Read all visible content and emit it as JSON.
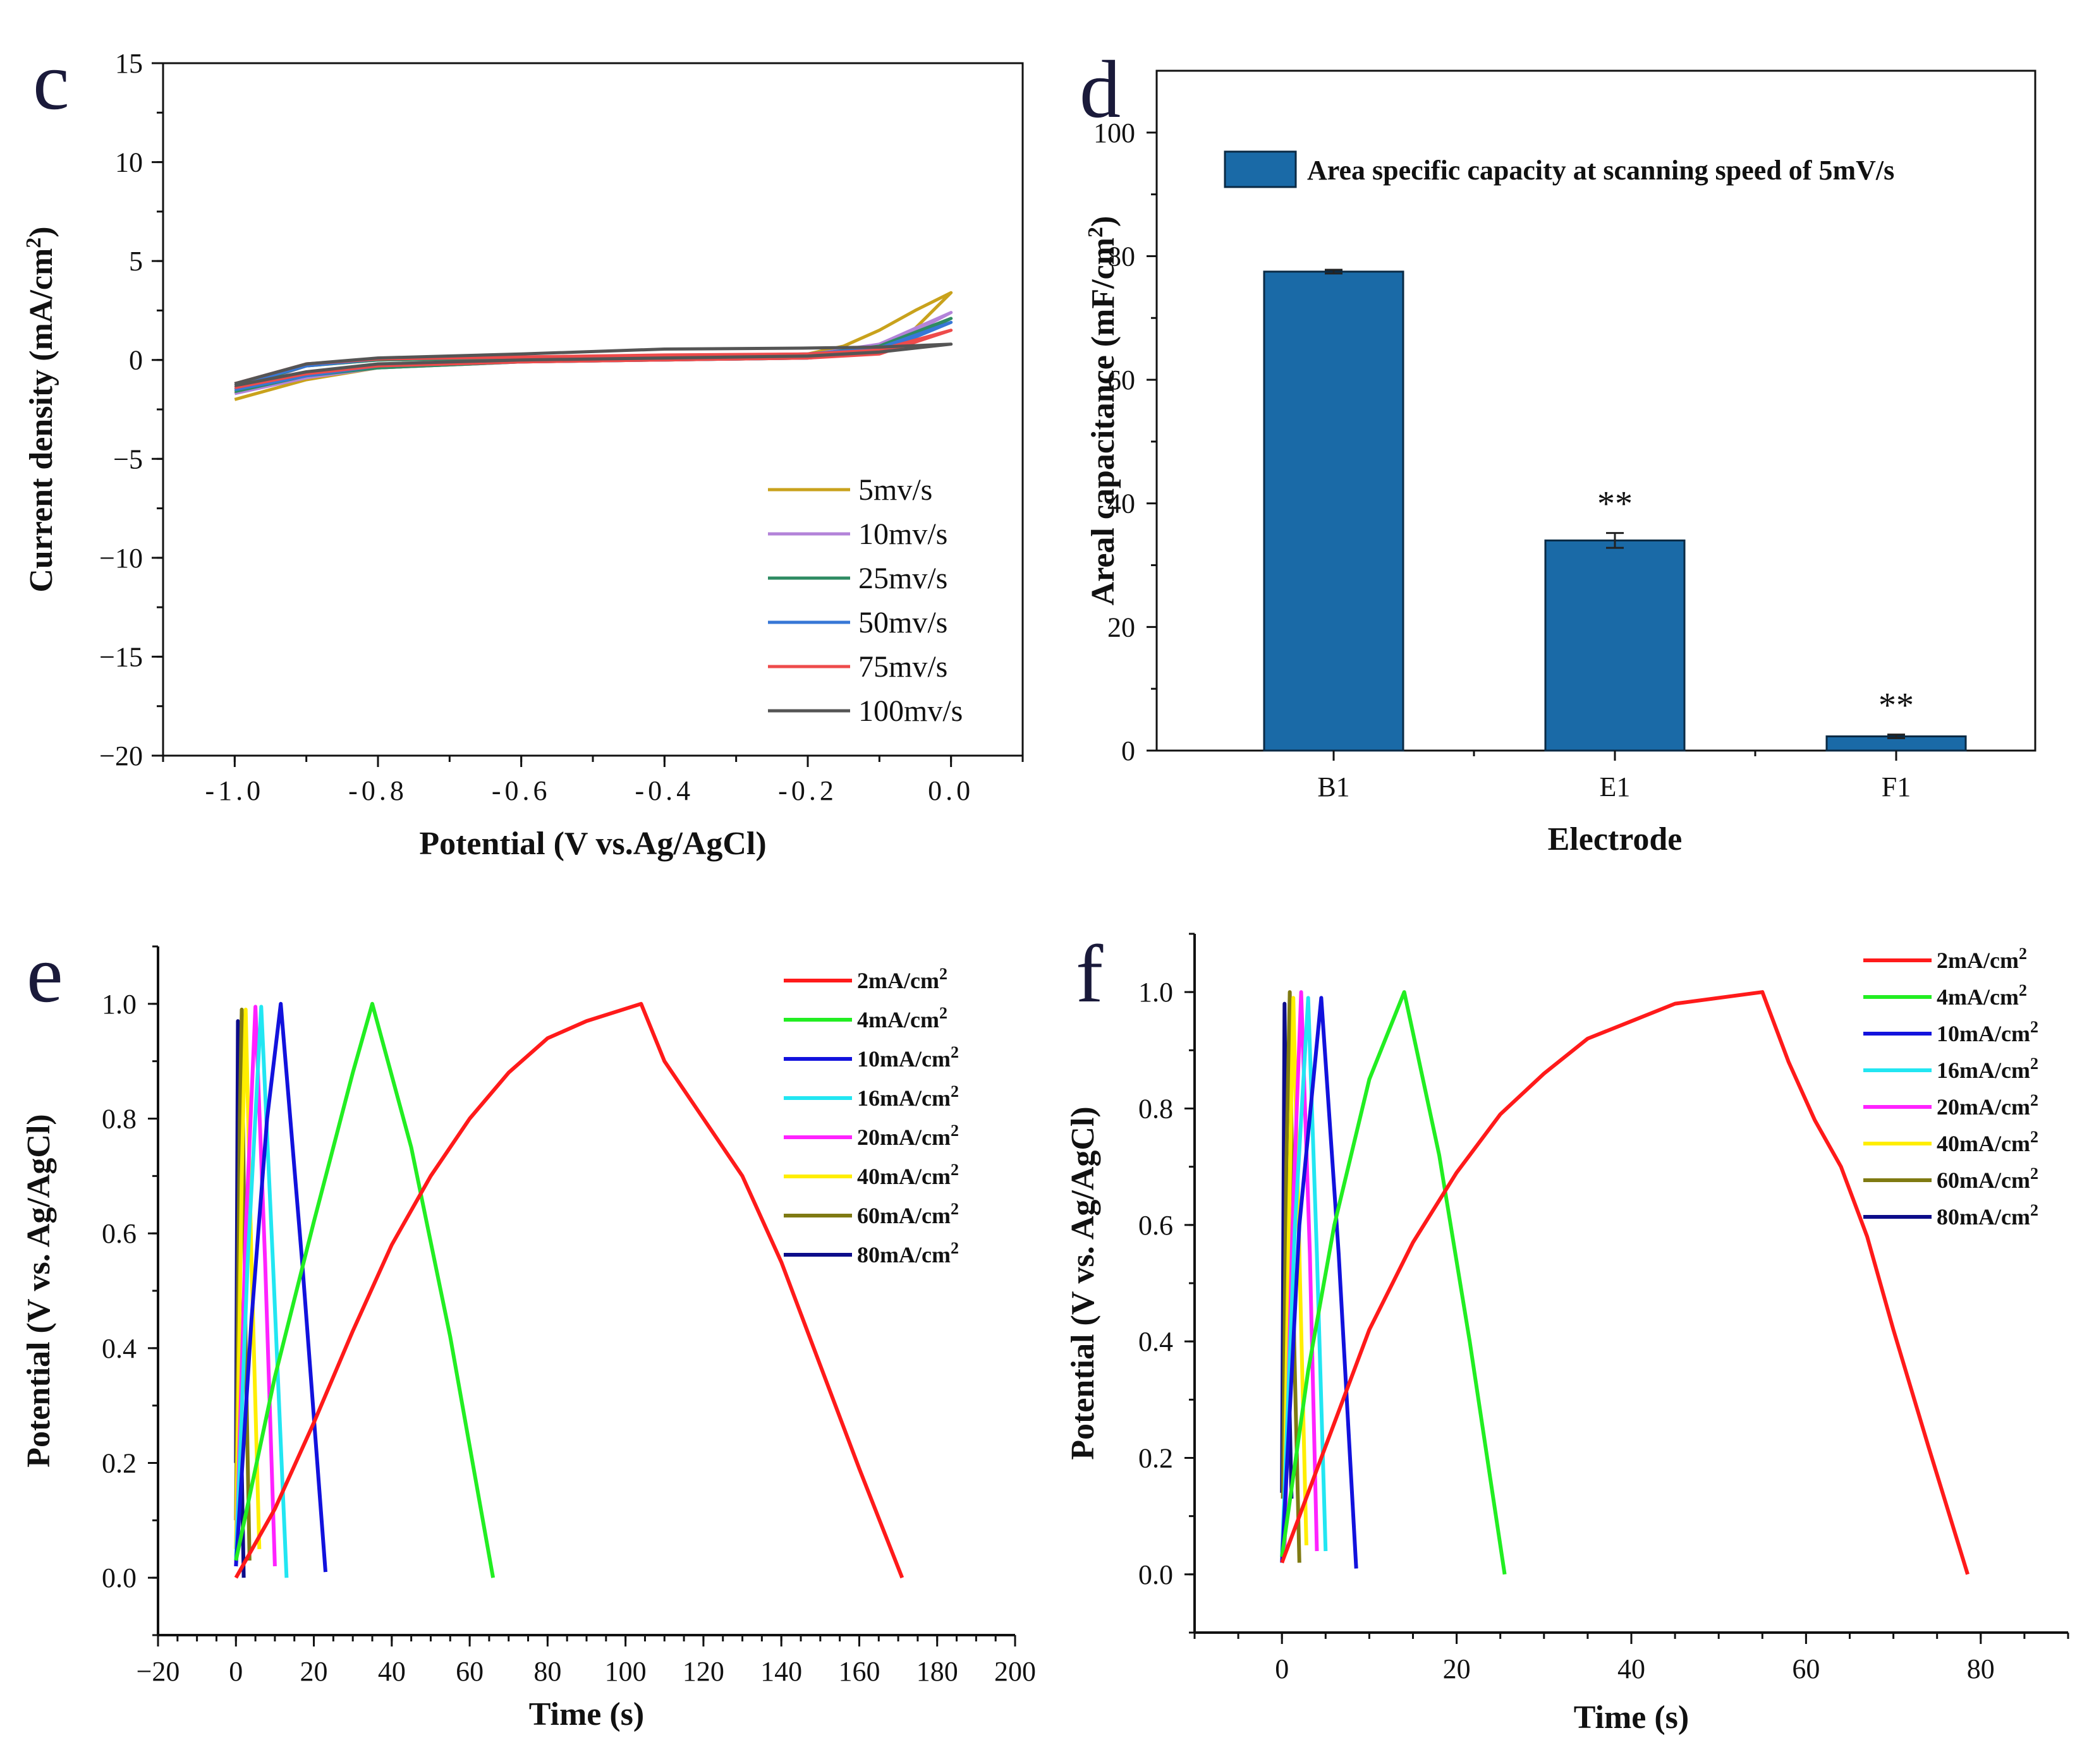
{
  "chart_data": [
    {
      "panel": "c",
      "type": "line",
      "xlabel": "Potential (V vs.Ag/AgCl)",
      "ylabel": "Current density (mA/cm2)",
      "xlim": [
        -1.1,
        0.1
      ],
      "ylim": [
        -20,
        15
      ],
      "xticks": [
        "-1.0",
        "-0.8",
        "-0.6",
        "-0.4",
        "-0.2",
        "0.0"
      ],
      "yticks": [
        "15",
        "10",
        "5",
        "0",
        "−5",
        "−10",
        "−15",
        "−20"
      ],
      "series": [
        {
          "name": "5mv/s",
          "color": "#c9a21c",
          "upper": [
            [
              -1.0,
              -1.7
            ],
            [
              -0.9,
              -0.2
            ],
            [
              -0.8,
              0.0
            ],
            [
              -0.6,
              0.1
            ],
            [
              -0.4,
              0.2
            ],
            [
              -0.2,
              0.3
            ],
            [
              -0.15,
              0.7
            ],
            [
              -0.1,
              1.5
            ],
            [
              -0.05,
              2.5
            ],
            [
              0.0,
              3.4
            ]
          ],
          "lower": [
            [
              0.0,
              3.4
            ],
            [
              -0.05,
              1.6
            ],
            [
              -0.1,
              0.6
            ],
            [
              -0.15,
              0.3
            ],
            [
              -0.2,
              0.1
            ],
            [
              -0.4,
              0.0
            ],
            [
              -0.6,
              -0.1
            ],
            [
              -0.8,
              -0.4
            ],
            [
              -0.9,
              -1.0
            ],
            [
              -1.0,
              -2.0
            ]
          ]
        },
        {
          "name": "10mv/s",
          "color": "#b383d9",
          "upper": [
            [
              -1.0,
              -1.5
            ],
            [
              -0.9,
              -0.3
            ],
            [
              -0.8,
              0.0
            ],
            [
              -0.6,
              0.1
            ],
            [
              -0.4,
              0.2
            ],
            [
              -0.2,
              0.25
            ],
            [
              -0.1,
              0.8
            ],
            [
              0.0,
              2.4
            ]
          ],
          "lower": [
            [
              0.0,
              2.4
            ],
            [
              -0.1,
              0.5
            ],
            [
              -0.2,
              0.1
            ],
            [
              -0.4,
              0.0
            ],
            [
              -0.6,
              -0.1
            ],
            [
              -0.8,
              -0.4
            ],
            [
              -0.9,
              -0.9
            ],
            [
              -1.0,
              -1.7
            ]
          ]
        },
        {
          "name": "25mv/s",
          "color": "#2e8b62",
          "upper": [
            [
              -1.0,
              -1.4
            ],
            [
              -0.9,
              -0.3
            ],
            [
              -0.8,
              0.0
            ],
            [
              -0.6,
              0.1
            ],
            [
              -0.4,
              0.2
            ],
            [
              -0.2,
              0.25
            ],
            [
              -0.1,
              0.7
            ],
            [
              0.0,
              2.1
            ]
          ],
          "lower": [
            [
              0.0,
              2.1
            ],
            [
              -0.1,
              0.4
            ],
            [
              -0.2,
              0.1
            ],
            [
              -0.4,
              0.0
            ],
            [
              -0.6,
              -0.1
            ],
            [
              -0.8,
              -0.4
            ],
            [
              -0.9,
              -0.8
            ],
            [
              -1.0,
              -1.6
            ]
          ]
        },
        {
          "name": "50mv/s",
          "color": "#3777d6",
          "upper": [
            [
              -1.0,
              -1.3
            ],
            [
              -0.9,
              -0.3
            ],
            [
              -0.8,
              0.05
            ],
            [
              -0.6,
              0.15
            ],
            [
              -0.4,
              0.2
            ],
            [
              -0.2,
              0.3
            ],
            [
              -0.1,
              0.6
            ],
            [
              0.0,
              1.9
            ]
          ],
          "lower": [
            [
              0.0,
              1.9
            ],
            [
              -0.1,
              0.4
            ],
            [
              -0.2,
              0.1
            ],
            [
              -0.4,
              0.0
            ],
            [
              -0.6,
              -0.1
            ],
            [
              -0.8,
              -0.3
            ],
            [
              -0.9,
              -0.8
            ],
            [
              -1.0,
              -1.5
            ]
          ]
        },
        {
          "name": "75mv/s",
          "color": "#ee4b4b",
          "upper": [
            [
              -1.0,
              -1.2
            ],
            [
              -0.9,
              -0.2
            ],
            [
              -0.8,
              0.05
            ],
            [
              -0.6,
              0.15
            ],
            [
              -0.4,
              0.25
            ],
            [
              -0.2,
              0.3
            ],
            [
              -0.1,
              0.5
            ],
            [
              0.0,
              1.5
            ]
          ],
          "lower": [
            [
              0.0,
              1.5
            ],
            [
              -0.1,
              0.3
            ],
            [
              -0.2,
              0.1
            ],
            [
              -0.4,
              0.0
            ],
            [
              -0.6,
              -0.1
            ],
            [
              -0.8,
              -0.3
            ],
            [
              -0.9,
              -0.7
            ],
            [
              -1.0,
              -1.4
            ]
          ]
        },
        {
          "name": "100mv/s",
          "color": "#555555",
          "upper": [
            [
              -1.0,
              -1.2
            ],
            [
              -0.9,
              -0.2
            ],
            [
              -0.8,
              0.1
            ],
            [
              -0.6,
              0.3
            ],
            [
              -0.4,
              0.55
            ],
            [
              -0.2,
              0.6
            ],
            [
              -0.1,
              0.65
            ],
            [
              0.0,
              0.8
            ]
          ],
          "lower": [
            [
              0.0,
              0.8
            ],
            [
              -0.1,
              0.4
            ],
            [
              -0.2,
              0.2
            ],
            [
              -0.4,
              0.1
            ],
            [
              -0.6,
              0.0
            ],
            [
              -0.8,
              -0.2
            ],
            [
              -0.9,
              -0.6
            ],
            [
              -1.0,
              -1.3
            ]
          ]
        }
      ]
    },
    {
      "panel": "d",
      "type": "bar",
      "xlabel": "Electrode",
      "ylabel": "Areal capacitance (mF/cm2)",
      "ylim": [
        0,
        110
      ],
      "yticks": [
        "0",
        "20",
        "40",
        "60",
        "80",
        "100"
      ],
      "categories": [
        "B1",
        "E1",
        "F1"
      ],
      "values": [
        77.5,
        34.0,
        2.3
      ],
      "errors": [
        0.3,
        1.2,
        0.3
      ],
      "annotations": [
        "",
        "**",
        "**"
      ],
      "legend": "Area specific capacity  at scanning speed of 5mV/s",
      "bar_color": "#1a6aa7"
    },
    {
      "panel": "e",
      "type": "line",
      "xlabel": "Time (s)",
      "ylabel": "Potential (V vs. Ag/AgCl)",
      "xlim": [
        -20,
        200
      ],
      "ylim": [
        -0.1,
        1.1
      ],
      "xticks": [
        "−20",
        "0",
        "20",
        "40",
        "60",
        "80",
        "100",
        "120",
        "140",
        "160",
        "180",
        "200"
      ],
      "yticks": [
        "0.0",
        "0.2",
        "0.4",
        "0.6",
        "0.8",
        "1.0"
      ],
      "series": [
        {
          "name": "2mA/cm2",
          "color": "#ff1a1a",
          "points": [
            [
              0,
              0.0
            ],
            [
              10,
              0.12
            ],
            [
              20,
              0.27
            ],
            [
              30,
              0.43
            ],
            [
              40,
              0.58
            ],
            [
              50,
              0.7
            ],
            [
              60,
              0.8
            ],
            [
              70,
              0.88
            ],
            [
              80,
              0.94
            ],
            [
              90,
              0.97
            ],
            [
              104,
              1.0
            ],
            [
              110,
              0.9
            ],
            [
              120,
              0.8
            ],
            [
              130,
              0.7
            ],
            [
              140,
              0.55
            ],
            [
              150,
              0.37
            ],
            [
              160,
              0.19
            ],
            [
              171,
              0.0
            ]
          ]
        },
        {
          "name": "4mA/cm2",
          "color": "#22ee22",
          "points": [
            [
              0,
              0.03
            ],
            [
              10,
              0.35
            ],
            [
              20,
              0.62
            ],
            [
              30,
              0.88
            ],
            [
              35,
              1.0
            ],
            [
              45,
              0.75
            ],
            [
              55,
              0.42
            ],
            [
              66,
              0.0
            ]
          ]
        },
        {
          "name": "10mA/cm2",
          "color": "#1212dd",
          "points": [
            [
              0,
              0.02
            ],
            [
              4,
              0.45
            ],
            [
              8,
              0.8
            ],
            [
              11.5,
              1.0
            ],
            [
              17,
              0.55
            ],
            [
              23,
              0.01
            ]
          ]
        },
        {
          "name": "16mA/cm2",
          "color": "#22e6f2",
          "points": [
            [
              0,
              0.03
            ],
            [
              3,
              0.55
            ],
            [
              6.5,
              0.995
            ],
            [
              9.5,
              0.55
            ],
            [
              13,
              0.0
            ]
          ]
        },
        {
          "name": "20mA/cm2",
          "color": "#ff22ff",
          "points": [
            [
              0,
              0.02
            ],
            [
              2.5,
              0.6
            ],
            [
              5,
              0.995
            ],
            [
              7.5,
              0.55
            ],
            [
              10,
              0.02
            ]
          ]
        },
        {
          "name": "40mA/cm2",
          "color": "#ffee00",
          "points": [
            [
              0,
              0.05
            ],
            [
              1.5,
              0.7
            ],
            [
              2.5,
              0.99
            ],
            [
              4,
              0.55
            ],
            [
              6,
              0.05
            ]
          ]
        },
        {
          "name": "60mA/cm2",
          "color": "#7f7a12",
          "points": [
            [
              0,
              0.1
            ],
            [
              1,
              0.8
            ],
            [
              1.5,
              0.99
            ],
            [
              2.5,
              0.4
            ],
            [
              3.5,
              0.03
            ]
          ]
        },
        {
          "name": "80mA/cm2",
          "color": "#0c0c8a",
          "points": [
            [
              0,
              0.2
            ],
            [
              0.5,
              0.97
            ],
            [
              1.2,
              0.3
            ],
            [
              2,
              0.0
            ]
          ]
        }
      ]
    },
    {
      "panel": "f",
      "type": "line",
      "xlabel": "Time (s)",
      "ylabel": "Potential (V vs. Ag/AgCl)",
      "xlim": [
        -10,
        90
      ],
      "ylim": [
        -0.1,
        1.1
      ],
      "xticks": [
        "0",
        "20",
        "40",
        "60",
        "80"
      ],
      "yticks": [
        "0.0",
        "0.2",
        "0.4",
        "0.6",
        "0.8",
        "1.0"
      ],
      "series": [
        {
          "name": "2mA/cm2",
          "color": "#ff1a1a",
          "points": [
            [
              0,
              0.02
            ],
            [
              5,
              0.22
            ],
            [
              10,
              0.42
            ],
            [
              15,
              0.57
            ],
            [
              20,
              0.69
            ],
            [
              25,
              0.79
            ],
            [
              30,
              0.86
            ],
            [
              35,
              0.92
            ],
            [
              40,
              0.95
            ],
            [
              45,
              0.98
            ],
            [
              55,
              1.0
            ],
            [
              58,
              0.88
            ],
            [
              61,
              0.78
            ],
            [
              64,
              0.7
            ],
            [
              67,
              0.58
            ],
            [
              70,
              0.42
            ],
            [
              74,
              0.22
            ],
            [
              78.5,
              0.0
            ]
          ]
        },
        {
          "name": "4mA/cm2",
          "color": "#22ee22",
          "points": [
            [
              0,
              0.03
            ],
            [
              3,
              0.35
            ],
            [
              6,
              0.6
            ],
            [
              10,
              0.85
            ],
            [
              14,
              1.0
            ],
            [
              18,
              0.72
            ],
            [
              21.5,
              0.4
            ],
            [
              25.5,
              0.0
            ]
          ]
        },
        {
          "name": "10mA/cm2",
          "color": "#1212dd",
          "points": [
            [
              0,
              0.02
            ],
            [
              2,
              0.6
            ],
            [
              4.5,
              0.99
            ],
            [
              6.5,
              0.55
            ],
            [
              8.5,
              0.01
            ]
          ]
        },
        {
          "name": "16mA/cm2",
          "color": "#22e6f2",
          "points": [
            [
              0,
              0.03
            ],
            [
              1.5,
              0.6
            ],
            [
              3,
              0.99
            ],
            [
              4,
              0.55
            ],
            [
              5,
              0.04
            ]
          ]
        },
        {
          "name": "20mA/cm2",
          "color": "#ff22ff",
          "points": [
            [
              0.3,
              0.04
            ],
            [
              1.2,
              0.6
            ],
            [
              2.2,
              1.0
            ],
            [
              3.2,
              0.55
            ],
            [
              4,
              0.04
            ]
          ]
        },
        {
          "name": "40mA/cm2",
          "color": "#ffee00",
          "points": [
            [
              0.2,
              0.05
            ],
            [
              0.8,
              0.6
            ],
            [
              1.3,
              0.99
            ],
            [
              2.0,
              0.55
            ],
            [
              2.8,
              0.05
            ]
          ]
        },
        {
          "name": "60mA/cm2",
          "color": "#7f7a12",
          "points": [
            [
              0.1,
              0.13
            ],
            [
              0.5,
              0.7
            ],
            [
              0.9,
              1.0
            ],
            [
              1.4,
              0.4
            ],
            [
              2.0,
              0.02
            ]
          ]
        },
        {
          "name": "80mA/cm2",
          "color": "#0c0c8a",
          "points": [
            [
              0,
              0.14
            ],
            [
              0.3,
              0.98
            ],
            [
              0.7,
              0.4
            ],
            [
              1.1,
              0.13
            ]
          ]
        }
      ]
    }
  ]
}
